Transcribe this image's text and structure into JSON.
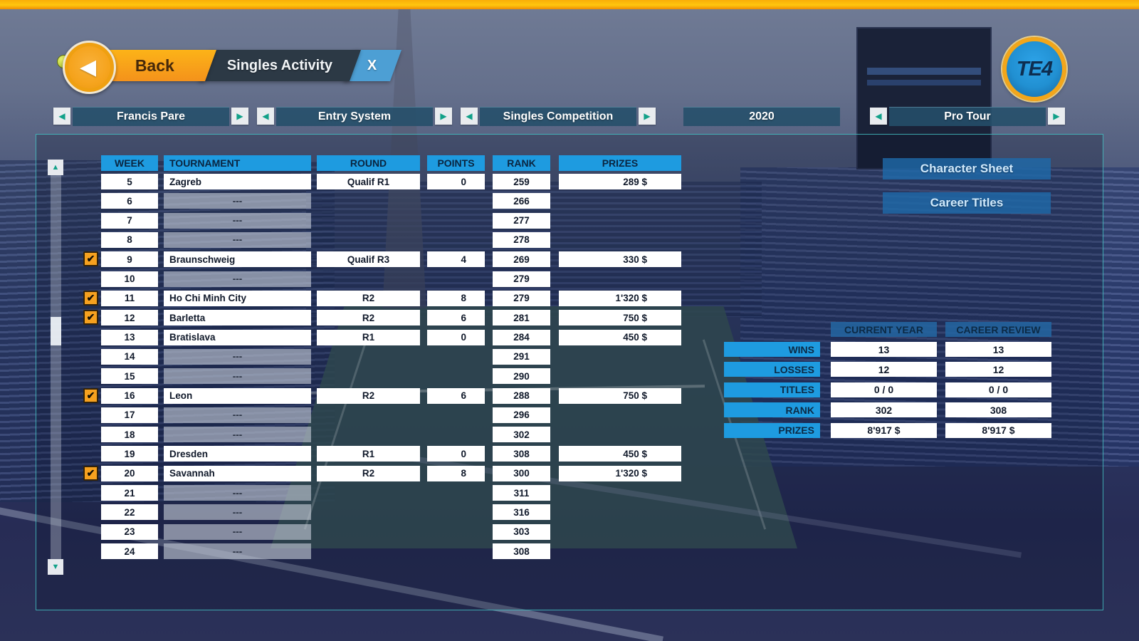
{
  "icons": {
    "back_arrow": "◀",
    "left_arrow": "◀",
    "right_arrow": "▶",
    "up_arrow": "▲",
    "down_arrow": "▼",
    "check": "✔"
  },
  "top_bar": {
    "back_label": "Back",
    "title": "Singles Activity",
    "close_label": "X",
    "logo_text": "TE4"
  },
  "nav": {
    "player": {
      "label": "Francis Pare"
    },
    "entry_system": {
      "label": "Entry System"
    },
    "competition": {
      "label": "Singles Competition"
    },
    "year": {
      "label": "2020"
    },
    "tour": {
      "label": "Pro Tour"
    }
  },
  "activity_table": {
    "headers": {
      "week": "WEEK",
      "tournament": "TOURNAMENT",
      "round": "ROUND",
      "points": "POINTS",
      "rank": "RANK",
      "prizes": "PRIZES"
    },
    "rows": [
      {
        "week": "5",
        "tournament": "Zagreb",
        "round": "Qualif R1",
        "points": "0",
        "rank": "259",
        "prizes": "289 $",
        "checked": false
      },
      {
        "week": "6",
        "tournament": "---",
        "rank": "266",
        "checked": false
      },
      {
        "week": "7",
        "tournament": "---",
        "rank": "277",
        "checked": false
      },
      {
        "week": "8",
        "tournament": "---",
        "rank": "278",
        "checked": false
      },
      {
        "week": "9",
        "tournament": "Braunschweig",
        "round": "Qualif R3",
        "points": "4",
        "rank": "269",
        "prizes": "330 $",
        "checked": true
      },
      {
        "week": "10",
        "tournament": "---",
        "rank": "279",
        "checked": false
      },
      {
        "week": "11",
        "tournament": "Ho Chi Minh City",
        "round": "R2",
        "points": "8",
        "rank": "279",
        "prizes": "1'320 $",
        "checked": true
      },
      {
        "week": "12",
        "tournament": "Barletta",
        "round": "R2",
        "points": "6",
        "rank": "281",
        "prizes": "750 $",
        "checked": true
      },
      {
        "week": "13",
        "tournament": "Bratislava",
        "round": "R1",
        "points": "0",
        "rank": "284",
        "prizes": "450 $",
        "checked": false
      },
      {
        "week": "14",
        "tournament": "---",
        "rank": "291",
        "checked": false
      },
      {
        "week": "15",
        "tournament": "---",
        "rank": "290",
        "checked": false
      },
      {
        "week": "16",
        "tournament": "Leon",
        "round": "R2",
        "points": "6",
        "rank": "288",
        "prizes": "750 $",
        "checked": true
      },
      {
        "week": "17",
        "tournament": "---",
        "rank": "296",
        "checked": false
      },
      {
        "week": "18",
        "tournament": "---",
        "rank": "302",
        "checked": false
      },
      {
        "week": "19",
        "tournament": "Dresden",
        "round": "R1",
        "points": "0",
        "rank": "308",
        "prizes": "450 $",
        "checked": false
      },
      {
        "week": "20",
        "tournament": "Savannah",
        "round": "R2",
        "points": "8",
        "rank": "300",
        "prizes": "1'320 $",
        "checked": true
      },
      {
        "week": "21",
        "tournament": "---",
        "rank": "311",
        "checked": false
      },
      {
        "week": "22",
        "tournament": "---",
        "rank": "316",
        "checked": false
      },
      {
        "week": "23",
        "tournament": "---",
        "rank": "303",
        "checked": false
      },
      {
        "week": "24",
        "tournament": "---",
        "rank": "308",
        "checked": false
      }
    ]
  },
  "side_panel": {
    "character_sheet": "Character Sheet",
    "career_titles": "Career Titles"
  },
  "stats": {
    "col_headers": [
      "CURRENT YEAR",
      "CAREER REVIEW"
    ],
    "rows": [
      {
        "label": "WINS",
        "current": "13",
        "career": "13"
      },
      {
        "label": "LOSSES",
        "current": "12",
        "career": "12"
      },
      {
        "label": "TITLES",
        "current": "0 / 0",
        "career": "0 / 0"
      },
      {
        "label": "RANK",
        "current": "302",
        "career": "308"
      },
      {
        "label": "PRIZES",
        "current": "8'917 $",
        "career": "8'917 $"
      }
    ]
  },
  "colors": {
    "accent_orange": "#f5a31c",
    "header_blue": "#1e9be0",
    "nav_bar_teal": "#24506a",
    "panel_border_teal": "#46c8c8",
    "checkbox_orange": "#f6a11f",
    "arrow_teal": "#12a189",
    "close_tab_blue": "#4d9fd4",
    "title_tab_slate": "#2c3945"
  }
}
